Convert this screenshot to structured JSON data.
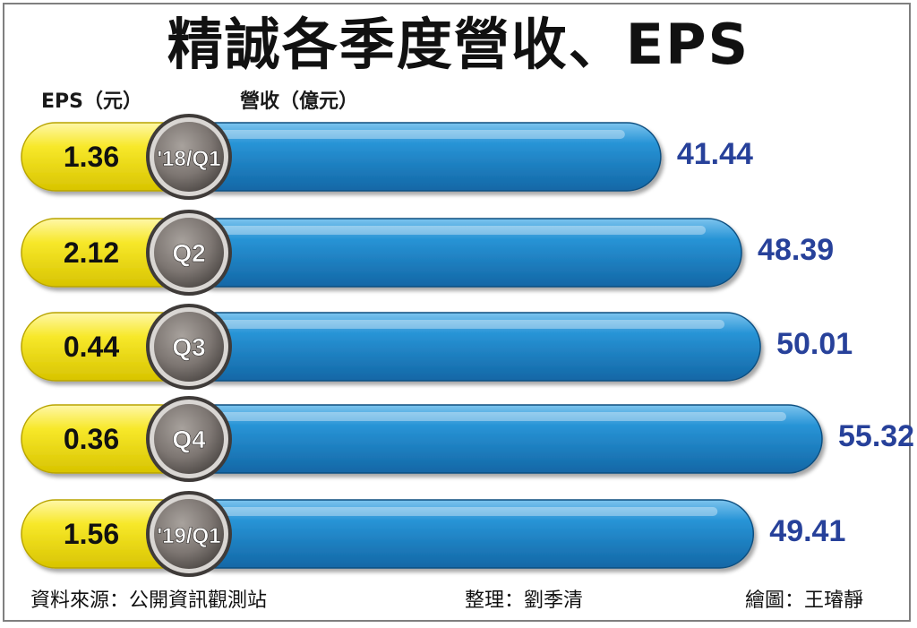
{
  "title": "精誠各季度營收、EPS",
  "eps_axis_label": "EPS（元）",
  "revenue_axis_label": "營收（億元）",
  "chart_data": {
    "type": "bar",
    "title": "精誠各季度營收、EPS",
    "categories": [
      "'18/Q1",
      "Q2",
      "Q3",
      "Q4",
      "'19/Q1"
    ],
    "series": [
      {
        "name": "EPS（元）",
        "values": [
          1.36,
          2.12,
          0.44,
          0.36,
          1.56
        ]
      },
      {
        "name": "營收（億元）",
        "values": [
          41.44,
          48.39,
          50.01,
          55.32,
          49.41
        ]
      }
    ],
    "eps_labels": [
      "1.36",
      "2.12",
      "0.44",
      "0.36",
      "1.56"
    ],
    "revenue_labels": [
      "41.44",
      "48.39",
      "50.01",
      "55.32",
      "49.41"
    ],
    "orientation": "horizontal",
    "colors": {
      "eps_bar": "#f2e21a",
      "revenue_bar": "#1f86c8",
      "revenue_value": "#27419a",
      "badge": "#7d7672"
    }
  },
  "footer": {
    "source": "資料來源：公開資訊觀測站",
    "editor": "整理：劉季清",
    "artist": "繪圖：王璿靜"
  }
}
